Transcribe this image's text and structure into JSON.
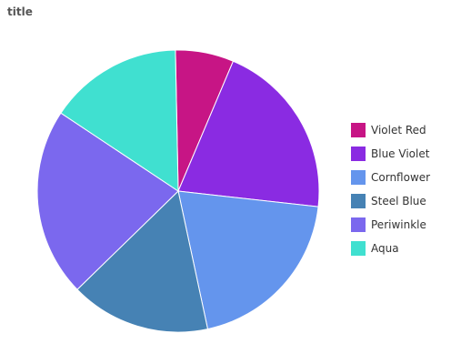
{
  "chart_data": {
    "type": "pie",
    "title": "title",
    "categories": [
      "Violet Red",
      "Blue Violet",
      "Cornflower",
      "Steel Blue",
      "Periwinkle",
      "Aqua"
    ],
    "values": [
      6.5,
      19.8,
      19.3,
      15.6,
      21.0,
      14.9
    ],
    "colors": [
      "#c71585",
      "#8a2be2",
      "#6495ed",
      "#4682b4",
      "#7b68ee",
      "#40e0d0"
    ],
    "legend_position": "right"
  }
}
